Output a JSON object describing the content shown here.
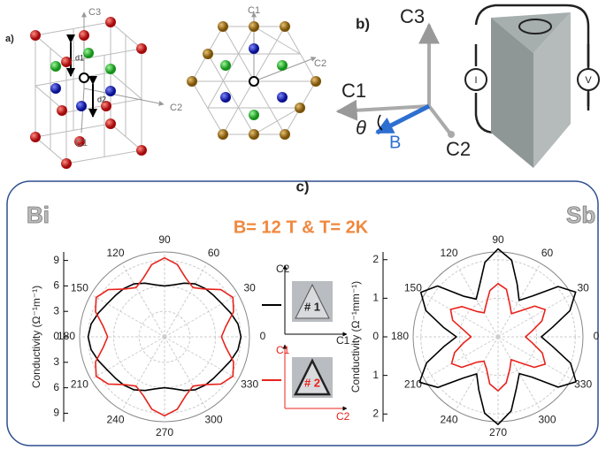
{
  "panel_a": {
    "label": "a)",
    "cube_axes": [
      "C3",
      "C1",
      "C2"
    ],
    "spacings": [
      "d1",
      "d2"
    ],
    "projection_axes": [
      "C1",
      "C2"
    ]
  },
  "panel_b": {
    "label": "b)",
    "axes": [
      "C3",
      "C1",
      "C2"
    ],
    "angle": "θ",
    "field": "B",
    "contacts": [
      "I",
      "V"
    ]
  },
  "panel_c": {
    "label": "c)",
    "header": "B= 12 T & T= 2K",
    "inset_1": {
      "axes": [
        "C2",
        "C1"
      ],
      "sample": "# 1"
    },
    "inset_2": {
      "axes": [
        "C1",
        "C2"
      ],
      "sample": "# 2"
    }
  },
  "chart_data": [
    {
      "type": "polar",
      "title": "Bi",
      "ylabel": "Conductivity (Ω⁻¹m⁻¹)",
      "theta": [
        0,
        10,
        20,
        30,
        40,
        50,
        60,
        70,
        80,
        90,
        100,
        110,
        120,
        130,
        140,
        150,
        160,
        170,
        180,
        190,
        200,
        210,
        220,
        230,
        240,
        250,
        260,
        270,
        280,
        290,
        300,
        310,
        320,
        330,
        340,
        350
      ],
      "rlim": [
        0,
        10
      ],
      "rticks": [
        0,
        3,
        6,
        9
      ],
      "angle_ticks": [
        0,
        30,
        60,
        90,
        120,
        150,
        180,
        210,
        240,
        270,
        300,
        330
      ],
      "series": [
        {
          "name": "# 1",
          "color": "#000000",
          "values": [
            9.0,
            8.78,
            8.27,
            7.8,
            7.56,
            7.44,
            7.2,
            6.73,
            6.22,
            6.0,
            6.22,
            6.73,
            7.2,
            7.44,
            7.56,
            7.8,
            8.27,
            8.78,
            9.0,
            8.78,
            8.27,
            7.8,
            7.56,
            7.44,
            7.2,
            6.73,
            6.22,
            6.0,
            6.22,
            6.73,
            7.2,
            7.44,
            7.56,
            7.8,
            8.27,
            8.78
          ]
        },
        {
          "name": "# 2",
          "color": "#e8231c",
          "values": [
            6.7,
            7.35,
            8.65,
            9.3,
            8.65,
            7.35,
            6.7,
            7.35,
            8.65,
            9.3,
            8.65,
            7.35,
            6.7,
            7.35,
            8.65,
            9.3,
            8.65,
            7.35,
            6.7,
            7.35,
            8.65,
            9.3,
            8.65,
            7.35,
            6.7,
            7.35,
            8.65,
            9.3,
            8.65,
            7.35,
            6.7,
            7.35,
            8.65,
            9.3,
            8.65,
            7.35
          ]
        }
      ]
    },
    {
      "type": "polar",
      "title": "Sb",
      "ylabel": "Conductivity (Ω⁻¹mm⁻¹)",
      "theta": [
        0,
        10,
        20,
        30,
        40,
        50,
        60,
        70,
        80,
        90,
        100,
        110,
        120,
        130,
        140,
        150,
        160,
        170,
        180,
        190,
        200,
        210,
        220,
        230,
        240,
        250,
        260,
        270,
        280,
        290,
        300,
        310,
        320,
        330,
        340,
        350
      ],
      "rlim": [
        0,
        2.2
      ],
      "rticks": [
        0,
        1,
        2
      ],
      "angle_ticks": [
        0,
        30,
        60,
        90,
        120,
        150,
        180,
        210,
        240,
        270,
        300,
        330
      ],
      "series": [
        {
          "name": "# 1",
          "color": "#000000",
          "values": [
            1.12,
            1.43,
            1.98,
            2.32,
            2.03,
            1.38,
            1.09,
            1.45,
            2.02,
            2.28,
            1.96,
            1.41,
            1.13,
            1.37,
            2.05,
            2.31,
            1.99,
            1.44,
            1.08,
            1.42,
            1.97,
            2.35,
            2.04,
            1.39,
            1.11,
            1.46,
            2.01,
            2.27,
            1.95,
            1.4,
            1.1,
            1.36,
            2.03,
            2.33,
            2.0,
            1.43
          ]
        },
        {
          "name": "# 2",
          "color": "#e8231c",
          "values": [
            0.71,
            0.9,
            1.21,
            1.41,
            1.24,
            0.87,
            0.69,
            0.89,
            1.25,
            1.38,
            1.22,
            0.9,
            0.72,
            0.86,
            1.22,
            1.42,
            1.25,
            0.88,
            0.7,
            0.91,
            1.2,
            1.39,
            1.23,
            0.86,
            0.73,
            0.88,
            1.24,
            1.4,
            1.21,
            0.89,
            0.68,
            0.87,
            1.23,
            1.41,
            1.22,
            0.9
          ]
        }
      ]
    }
  ]
}
